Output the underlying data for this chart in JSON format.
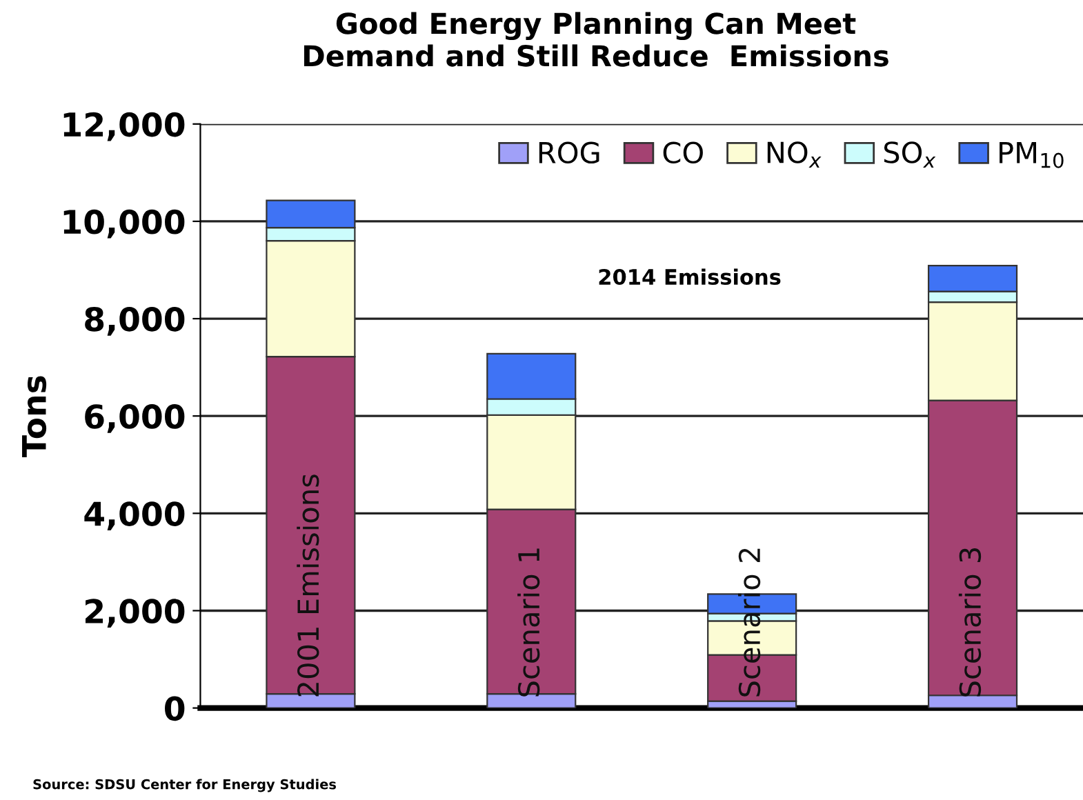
{
  "chart_data": {
    "type": "bar",
    "stacked": true,
    "title": "Good Energy Planning Can Meet\nDemand and Still Reduce  Emissions",
    "ylabel": "Tons",
    "categories": [
      "2001 Emissions",
      "Scenario 1",
      "Scenario 2",
      "Scenario 3"
    ],
    "series": [
      {
        "name": "ROG",
        "color": "#a0a0f8",
        "values": [
          290,
          290,
          140,
          260
        ]
      },
      {
        "name": "CO",
        "color": "#a44272",
        "values": [
          6930,
          3790,
          950,
          6060
        ]
      },
      {
        "name": "NO$_{x}$",
        "color": "#fcfcd4",
        "values": [
          2380,
          1940,
          700,
          2020
        ]
      },
      {
        "name": "SO$_{x}$",
        "color": "#ccfcfc",
        "values": [
          270,
          330,
          150,
          220
        ]
      },
      {
        "name": "PM$_{10}$",
        "color": "#3f73f5",
        "values": [
          560,
          930,
          400,
          530
        ]
      }
    ],
    "ylim": [
      0,
      12000
    ],
    "yticks": [
      0,
      {
        "value": 2000,
        "label": "2,000"
      },
      {
        "value": 4000,
        "label": "4,000"
      },
      {
        "value": 6000,
        "label": "6,000"
      },
      {
        "value": 8000,
        "label": "8,000"
      },
      {
        "value": 10000,
        "label": "10,000"
      },
      {
        "value": 12000,
        "label": "12,000"
      }
    ],
    "grid": "y",
    "legend": "top right",
    "annotations": [
      "2014 Emissions",
      "Source: SDSU Center for Energy Studies"
    ]
  }
}
